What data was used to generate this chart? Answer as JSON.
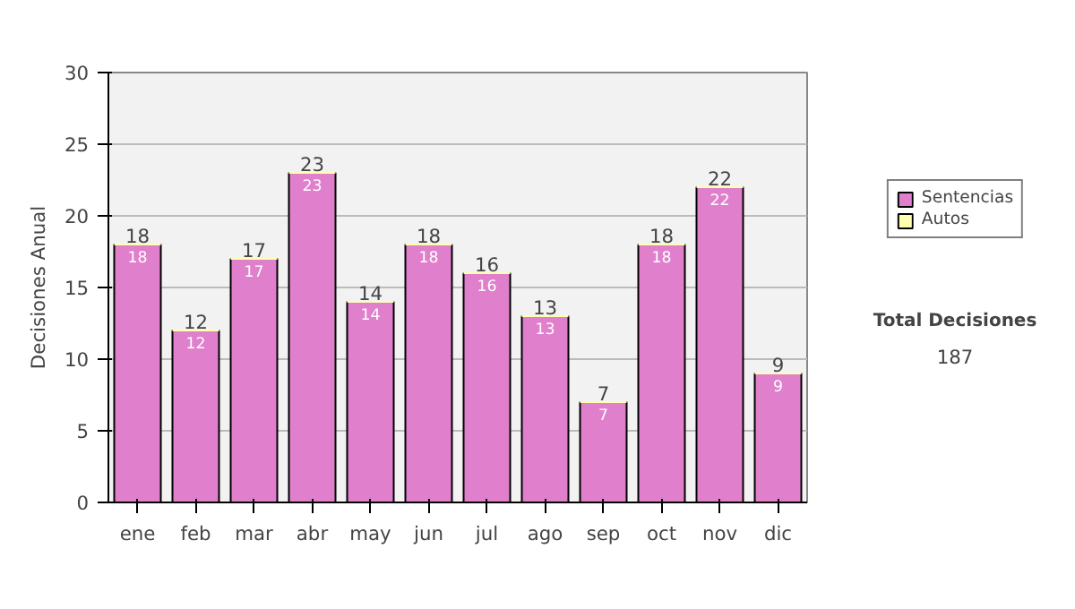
{
  "chart_data": {
    "type": "bar",
    "stacked": true,
    "ylabel": "Decisiones Anual",
    "categories": [
      "ene",
      "feb",
      "mar",
      "abr",
      "may",
      "jun",
      "jul",
      "ago",
      "sep",
      "oct",
      "nov",
      "dic"
    ],
    "series": [
      {
        "name": "Sentencias",
        "color": "#e07fcc",
        "values": [
          18,
          12,
          17,
          23,
          14,
          18,
          16,
          13,
          7,
          18,
          22,
          9
        ],
        "value_labels": [
          "18",
          "12",
          "17",
          "23",
          "14",
          "18",
          "16",
          "13",
          "7",
          "18",
          "22",
          "9"
        ]
      },
      {
        "name": "Autos",
        "color": "#ffffb0",
        "values": [
          0,
          0,
          0,
          0,
          0,
          0,
          0,
          0,
          0,
          0,
          0,
          0
        ]
      }
    ],
    "totals": [
      "18",
      "12",
      "17",
      "23",
      "14",
      "18",
      "16",
      "13",
      "7",
      "18",
      "22",
      "9"
    ],
    "ylim": [
      0,
      30
    ],
    "yticks": [
      0,
      5,
      10,
      15,
      20,
      25,
      30
    ],
    "grid": "y",
    "legend": "right",
    "annotations": [
      "Total Decisiones",
      "187"
    ]
  }
}
